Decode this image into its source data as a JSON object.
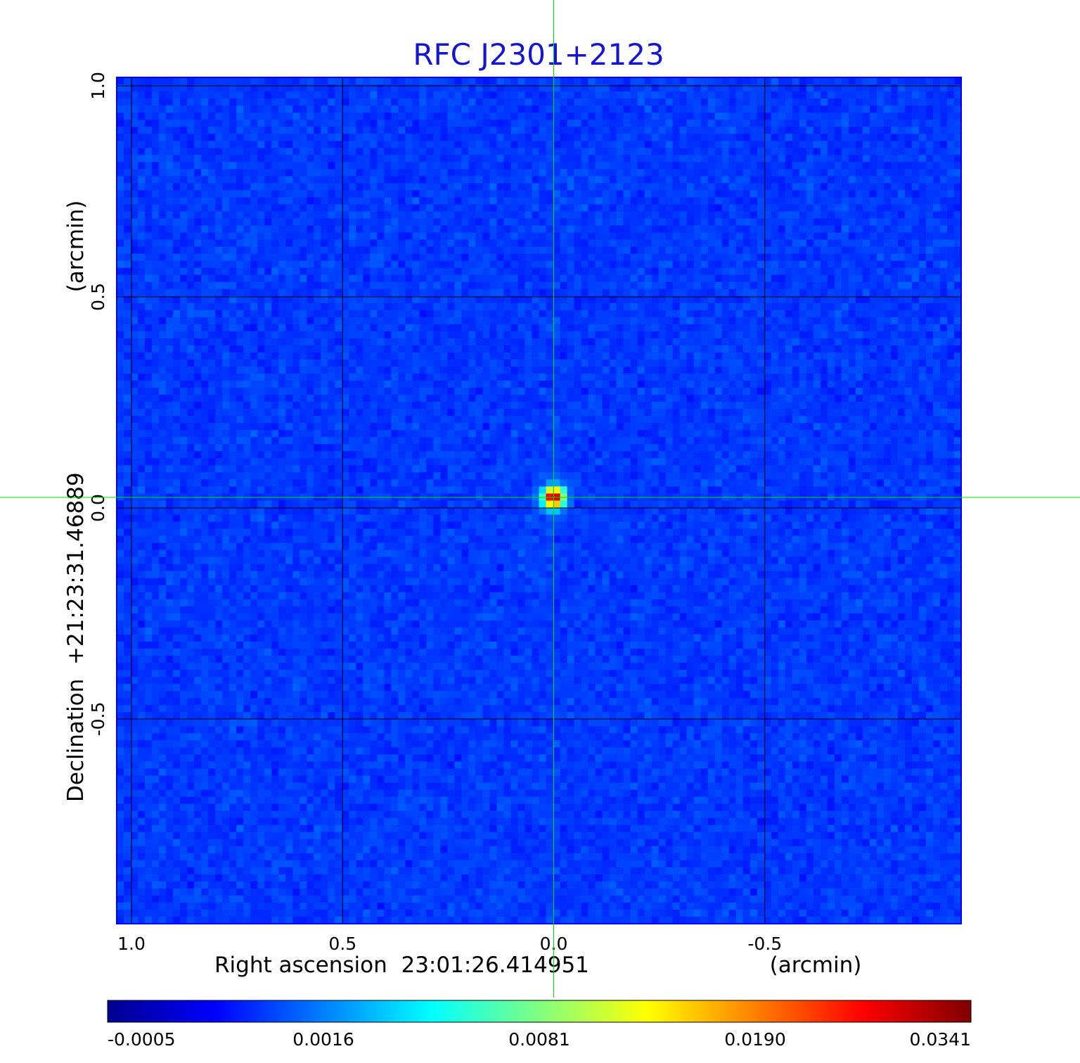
{
  "chart_data": {
    "type": "heatmap",
    "title": "RFC J2301+2123",
    "xlabel": "Right ascension  23:01:26.414951",
    "xlabel_unit": "(arcmin)",
    "ylabel": "Declination  +21:23:31.46889",
    "ylabel_unit": "(arcmin)",
    "xlim": [
      1.035,
      -0.965
    ],
    "ylim": [
      -0.985,
      1.02
    ],
    "x_ticks": [
      {
        "value": 1.0,
        "label": "1.0"
      },
      {
        "value": 0.5,
        "label": "0.5"
      },
      {
        "value": 0.0,
        "label": "0.0"
      },
      {
        "value": -0.5,
        "label": "-0.5"
      }
    ],
    "y_ticks": [
      {
        "value": 1.0,
        "label": "1.0"
      },
      {
        "value": 0.5,
        "label": "0.5"
      },
      {
        "value": 0.0,
        "label": "0.0"
      },
      {
        "value": -0.5,
        "label": "-0.5"
      }
    ],
    "grid": true,
    "colormap": "jet",
    "colorbar": {
      "labels": [
        "-0.0005",
        "0.0016",
        "0.0081",
        "0.0190",
        "0.0341"
      ],
      "range": [
        -0.0005,
        0.0341
      ],
      "placement": "bottom"
    },
    "background_level": 0.0,
    "peak": {
      "x": 0.0,
      "y": 0.025,
      "value": 0.0341
    },
    "crosshair": {
      "x": 0.0,
      "y": 0.025,
      "color": "#00e000"
    }
  },
  "colors": {
    "title": "#1414d2",
    "frame": "#0000ff",
    "grid": "#000000",
    "crosshair": "#00e000",
    "text": "#000000"
  }
}
